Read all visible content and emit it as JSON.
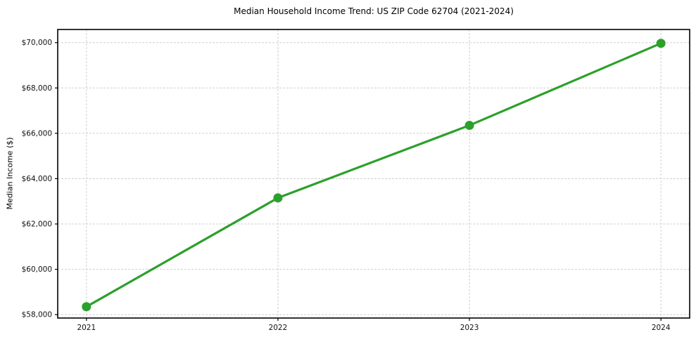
{
  "chart_data": {
    "type": "line",
    "title": "Median Household Income Trend: US ZIP Code 62704 (2021-2024)",
    "xlabel": "",
    "ylabel": "Median Income ($)",
    "x": [
      2021,
      2022,
      2023,
      2024
    ],
    "x_tick_labels": [
      "2021",
      "2022",
      "2023",
      "2024"
    ],
    "series": [
      {
        "name": "Median Household Income",
        "values": [
          58350,
          63150,
          66350,
          69970
        ]
      }
    ],
    "y_ticks": [
      58000,
      60000,
      62000,
      64000,
      66000,
      68000,
      70000
    ],
    "y_tick_labels": [
      "$58,000",
      "$60,000",
      "$62,000",
      "$64,000",
      "$66,000",
      "$68,000",
      "$70,000"
    ],
    "xlim": [
      2020.85,
      2024.15
    ],
    "ylim": [
      57850,
      70580
    ],
    "grid": true,
    "legend": "none",
    "colors": {
      "line": "#2ca02c",
      "marker": "#2ca02c",
      "grid": "#cfcfcf",
      "axis": "#000000",
      "text": "#111111",
      "background": "#ffffff"
    }
  }
}
